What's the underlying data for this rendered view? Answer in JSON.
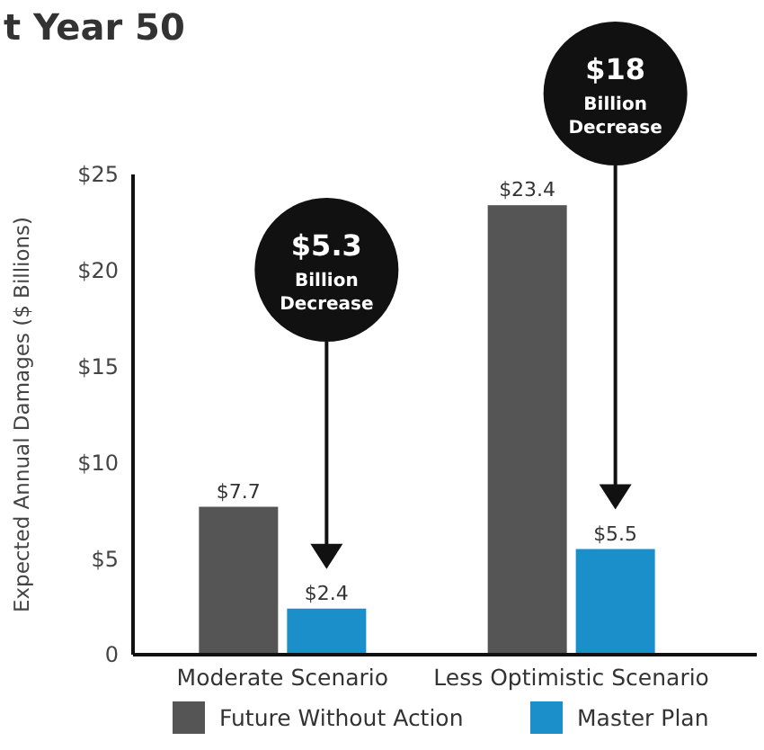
{
  "chart_data": {
    "type": "bar",
    "title": "t Year 50",
    "ylabel": "Expected Annual Damages ($ Billions)",
    "categories": [
      "Moderate Scenario",
      "Less Optimistic Scenario"
    ],
    "series": [
      {
        "name": "Future Without Action",
        "color": "#555555",
        "values": [
          7.7,
          23.4
        ],
        "value_labels": [
          "$7.7",
          "$23.4"
        ]
      },
      {
        "name": "Master Plan",
        "color": "#1a8fc9",
        "values": [
          2.4,
          5.5
        ],
        "value_labels": [
          "$2.4",
          "$5.5"
        ]
      }
    ],
    "ylim": [
      0,
      25
    ],
    "yticks": [
      0,
      {
        "value": 5,
        "label": "$5"
      },
      {
        "value": 10,
        "label": "$10"
      },
      {
        "value": 15,
        "label": "$15"
      },
      {
        "value": 20,
        "label": "$20"
      },
      {
        "value": 25,
        "label": "$25"
      }
    ],
    "annotations": [
      "$5.3 Billion Decrease",
      "$18 Billion Decrease"
    ],
    "legend": "bottom",
    "grid": false
  }
}
